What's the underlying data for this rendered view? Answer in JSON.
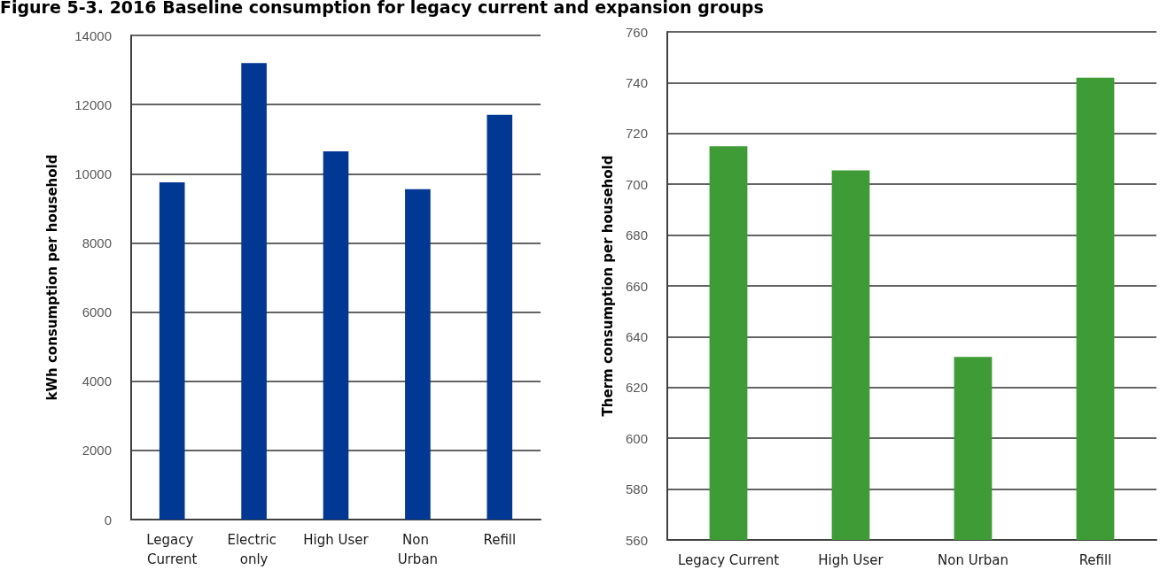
{
  "chart_data": [
    {
      "type": "bar",
      "title": "Figure 5-3. 2016 Baseline consumption for legacy current and expansion groups",
      "ylabel": "kWh consumption per household",
      "categories": [
        "Legacy Current",
        "Electric only",
        "High User",
        "Non Urban",
        "Refill"
      ],
      "values": [
        9750,
        13200,
        10650,
        9550,
        11700
      ],
      "color": "#003893",
      "ylim": [
        0,
        14000
      ],
      "yticks": [
        0,
        2000,
        4000,
        6000,
        8000,
        10000,
        12000,
        14000
      ],
      "grid": "y"
    },
    {
      "type": "bar",
      "ylabel": "Therm consumption per household",
      "categories": [
        "Legacy Current",
        "High User",
        "Non Urban",
        "Refill"
      ],
      "values": [
        715,
        705.5,
        632,
        742
      ],
      "color": "#3f9b35",
      "ylim": [
        560,
        760
      ],
      "yticks": [
        560,
        580,
        600,
        620,
        640,
        660,
        680,
        700,
        720,
        740,
        760
      ],
      "grid": "y"
    }
  ]
}
